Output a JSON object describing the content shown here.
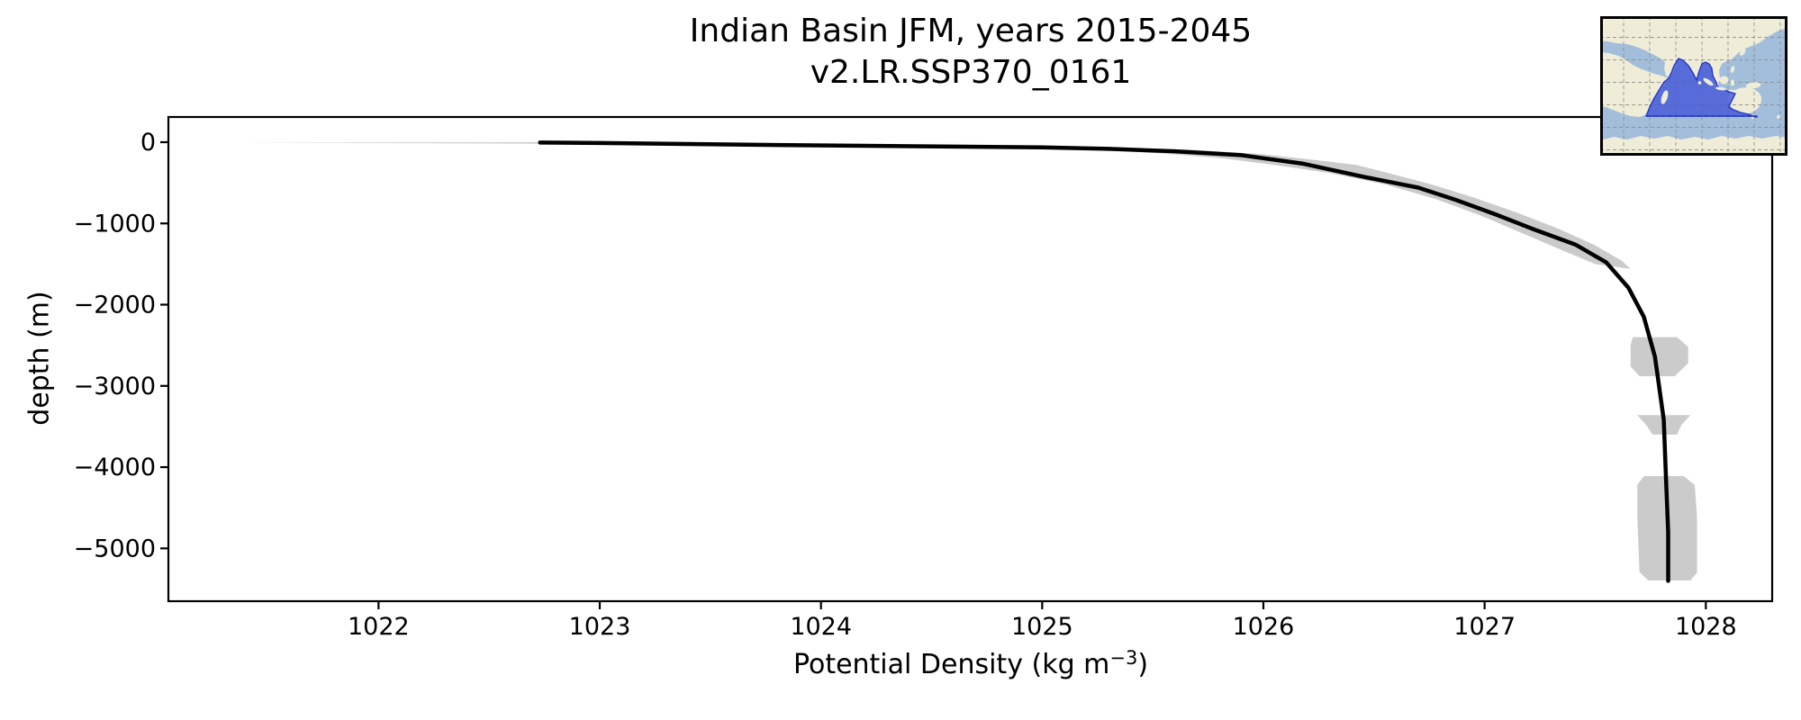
{
  "figure": {
    "title_line1": "Indian Basin JFM, years 2015-2045",
    "title_line2": "v2.LR.SSP370_0161",
    "xlabel_prefix": "Potential Density (kg m",
    "xlabel_sup": "−3",
    "xlabel_suffix": ")",
    "ylabel": "depth (m)",
    "background_color": "#ffffff",
    "text_color": "#000000"
  },
  "chart_data": {
    "type": "line",
    "title": "Indian Basin JFM, years 2015-2045",
    "subtitle": "v2.LR.SSP370_0161",
    "xlabel": "Potential Density (kg m⁻³)",
    "ylabel": "depth (m)",
    "grid": false,
    "legend": "none",
    "xlim": [
      1021.05,
      1028.3
    ],
    "ylim": [
      -5650,
      310
    ],
    "x_ticks": [
      {
        "value": 1022,
        "label": "1022"
      },
      {
        "value": 1023,
        "label": "1023"
      },
      {
        "value": 1024,
        "label": "1024"
      },
      {
        "value": 1025,
        "label": "1025"
      },
      {
        "value": 1026,
        "label": "1026"
      },
      {
        "value": 1027,
        "label": "1027"
      },
      {
        "value": 1028,
        "label": "1028"
      }
    ],
    "y_ticks": [
      {
        "value": 0,
        "label": "0"
      },
      {
        "value": -1000,
        "label": "−1000"
      },
      {
        "value": -2000,
        "label": "−2000"
      },
      {
        "value": -3000,
        "label": "−3000"
      },
      {
        "value": -4000,
        "label": "−4000"
      },
      {
        "value": -5000,
        "label": "−5000"
      }
    ],
    "series": [
      {
        "name": "mean_profile",
        "color": "#000000",
        "line_width": 4.5,
        "density": [
          1022.73,
          1023.0,
          1023.4,
          1023.8,
          1024.2,
          1024.6,
          1025.0,
          1025.3,
          1025.6,
          1025.9,
          1026.18,
          1026.46,
          1026.7,
          1026.87,
          1027.05,
          1027.22,
          1027.41,
          1027.55,
          1027.65,
          1027.72,
          1027.77,
          1027.81,
          1027.82,
          1027.83,
          1027.83
        ],
        "depth": [
          -5,
          -10,
          -22,
          -34,
          -45,
          -54,
          -64,
          -82,
          -112,
          -160,
          -265,
          -430,
          -560,
          -710,
          -890,
          -1070,
          -1260,
          -1480,
          -1790,
          -2150,
          -2640,
          -3415,
          -4145,
          -4800,
          -5400
        ]
      }
    ],
    "envelope": {
      "name": "spread_envelope",
      "color": "#cbcbcb",
      "polygons": [
        [
          [
            1022.9,
            0
          ],
          [
            1023.35,
            -8
          ],
          [
            1023.85,
            -20
          ],
          [
            1024.35,
            -32
          ],
          [
            1024.85,
            -44
          ],
          [
            1025.3,
            -60
          ],
          [
            1025.7,
            -95
          ],
          [
            1026.0,
            -150
          ],
          [
            1026.25,
            -225
          ],
          [
            1026.42,
            -280
          ],
          [
            1026.58,
            -390
          ],
          [
            1026.76,
            -520
          ],
          [
            1026.95,
            -680
          ],
          [
            1027.14,
            -860
          ],
          [
            1027.33,
            -1060
          ],
          [
            1027.5,
            -1270
          ],
          [
            1027.62,
            -1460
          ],
          [
            1027.66,
            -1560
          ],
          [
            1027.5,
            -1500
          ],
          [
            1027.35,
            -1330
          ],
          [
            1027.17,
            -1120
          ],
          [
            1026.98,
            -900
          ],
          [
            1026.78,
            -700
          ],
          [
            1026.55,
            -520
          ],
          [
            1026.3,
            -380
          ],
          [
            1026.05,
            -280
          ],
          [
            1025.82,
            -200
          ],
          [
            1025.55,
            -140
          ],
          [
            1025.25,
            -95
          ],
          [
            1024.9,
            -68
          ],
          [
            1024.5,
            -56
          ],
          [
            1024.1,
            -46
          ],
          [
            1023.65,
            -35
          ],
          [
            1023.15,
            -25
          ],
          [
            1022.6,
            -17
          ],
          [
            1022.0,
            -11
          ],
          [
            1021.38,
            -7
          ],
          [
            1022.3,
            -1
          ],
          [
            1022.9,
            0
          ]
        ],
        [
          [
            1027.67,
            -2400
          ],
          [
            1027.87,
            -2400
          ],
          [
            1027.92,
            -2520
          ],
          [
            1027.92,
            -2720
          ],
          [
            1027.86,
            -2880
          ],
          [
            1027.7,
            -2880
          ],
          [
            1027.66,
            -2760
          ],
          [
            1027.66,
            -2500
          ]
        ],
        [
          [
            1027.69,
            -3360
          ],
          [
            1027.93,
            -3360
          ],
          [
            1027.89,
            -3480
          ],
          [
            1027.87,
            -3600
          ],
          [
            1027.76,
            -3600
          ],
          [
            1027.73,
            -3480
          ]
        ],
        [
          [
            1027.72,
            -4110
          ],
          [
            1027.9,
            -4110
          ],
          [
            1027.95,
            -4220
          ],
          [
            1027.96,
            -4600
          ],
          [
            1027.96,
            -5300
          ],
          [
            1027.93,
            -5395
          ],
          [
            1027.74,
            -5395
          ],
          [
            1027.7,
            -5290
          ],
          [
            1027.69,
            -4600
          ],
          [
            1027.69,
            -4220
          ]
        ]
      ]
    },
    "inset_map": {
      "description": "world map inset with Indian Ocean basin highlighted",
      "ocean_color": "#a3bedb",
      "land_color": "#efecd7",
      "highlight_color": "#4154d8",
      "highlight_border_color": "#2636c9",
      "grid_color": "#8e8e8e",
      "border_color": "#000000"
    },
    "axes_style": {
      "spine_color": "#000000",
      "spine_width": 2.2,
      "tick_length": 9,
      "tick_width": 2.2,
      "tick_font_size": 27
    }
  }
}
